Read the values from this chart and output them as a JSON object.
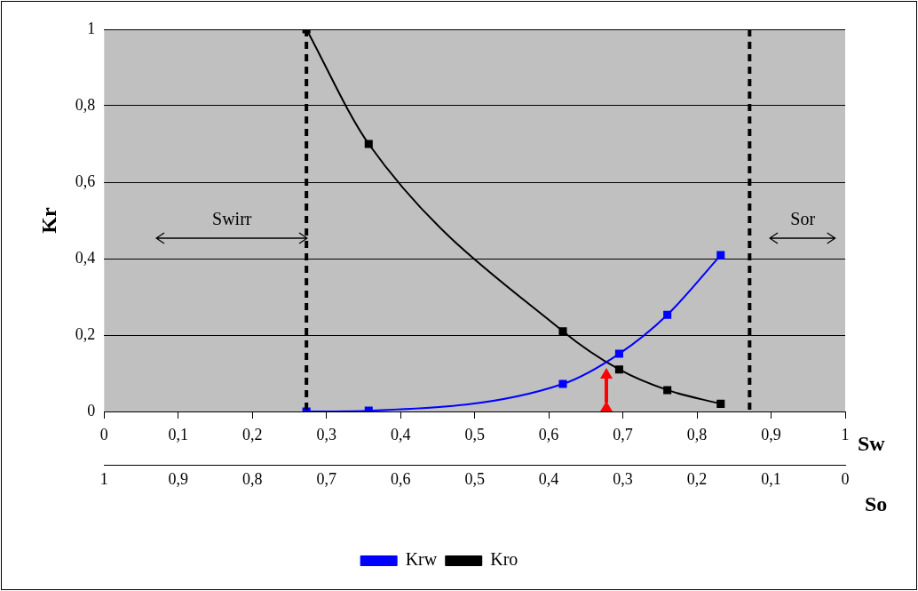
{
  "chart_data": {
    "type": "line",
    "xlabel": "Sw",
    "ylabel": "Kr",
    "x2label": "So",
    "xlim": [
      0,
      1
    ],
    "xticks": [
      0,
      {
        "value": 0.1,
        "label": "0,1"
      },
      {
        "value": 0.2,
        "label": "0,2"
      },
      {
        "value": 0.3,
        "label": "0,3"
      },
      {
        "value": 0.4,
        "label": "0,4"
      },
      {
        "value": 0.5,
        "label": "0,5"
      },
      {
        "value": 0.6,
        "label": "0,6"
      },
      {
        "value": 0.7,
        "label": "0,7"
      },
      {
        "value": 0.8,
        "label": "0,8"
      },
      {
        "value": 0.9,
        "label": "0,9"
      },
      1
    ],
    "x2lim": [
      1,
      0
    ],
    "x2ticks": [
      1,
      {
        "value": 0.9,
        "label": "0,9"
      },
      {
        "value": 0.8,
        "label": "0,8"
      },
      {
        "value": 0.7,
        "label": "0,7"
      },
      {
        "value": 0.6,
        "label": "0,6"
      },
      {
        "value": 0.5,
        "label": "0,5"
      },
      {
        "value": 0.4,
        "label": "0,4"
      },
      {
        "value": 0.3,
        "label": "0,3"
      },
      {
        "value": 0.2,
        "label": "0,2"
      },
      {
        "value": 0.1,
        "label": "0,1"
      },
      0
    ],
    "ylim": [
      0,
      1
    ],
    "yticks": [
      0,
      {
        "value": 0.2,
        "label": "0,2"
      },
      {
        "value": 0.4,
        "label": "0,4"
      },
      {
        "value": 0.6,
        "label": "0,6"
      },
      {
        "value": 0.8,
        "label": "0,8"
      },
      1
    ],
    "x": [
      0.273,
      0.357,
      0.619,
      0.695,
      0.76,
      0.832
    ],
    "series": [
      {
        "name": "Krw",
        "color": "#0000ff",
        "values": [
          0,
          0.002,
          0.072,
          0.151,
          0.253,
          0.409
        ]
      },
      {
        "name": "Kro",
        "color": "#000000",
        "values": [
          1,
          0.7,
          0.21,
          0.11,
          0.056,
          0.02
        ]
      }
    ],
    "ref_lines": [
      {
        "axis": "x",
        "value": 0.273,
        "color": "#000000",
        "line_style": "dashed"
      },
      {
        "axis": "x",
        "value": 0.871,
        "color": "#000000",
        "line_style": "dashed"
      }
    ],
    "annotations": [
      "Swirr",
      "Sor"
    ],
    "grid": "y",
    "legend": "bottom",
    "marker": "square"
  }
}
